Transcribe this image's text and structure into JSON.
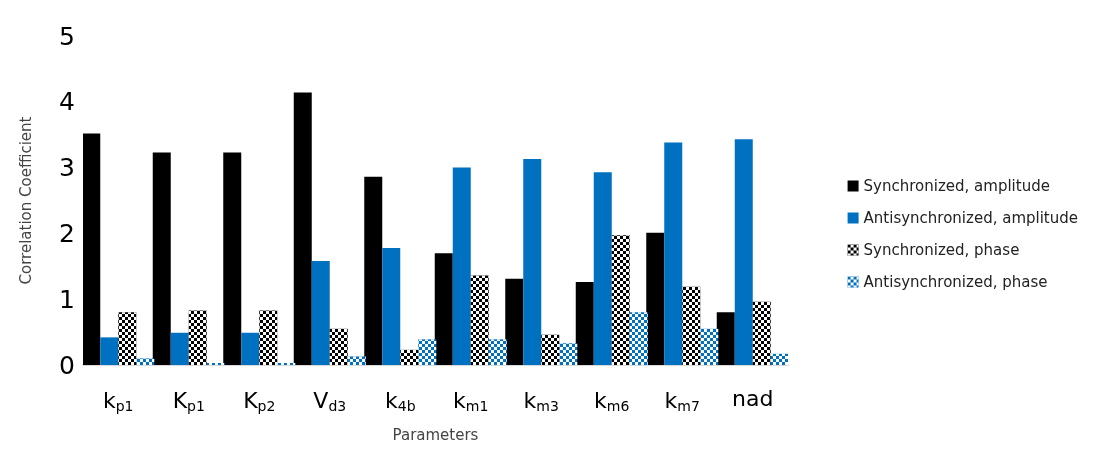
{
  "chart_data": {
    "type": "bar",
    "xlabel": "Parameters",
    "ylabel": "Correlation Coefficient",
    "categories": [
      "k$_{p1}$",
      "K$_{p1}$",
      "K$_{p2}$",
      "V$_{d3}$",
      "k$_{4b}$",
      "k$_{m1}$",
      "k$_{m3}$",
      "k$_{m6}$",
      "k$_{m7}$",
      "nad"
    ],
    "series": [
      {
        "name": "Synchronized, amplitude",
        "color": "#000000",
        "values": [
          3.52,
          3.23,
          3.23,
          4.14,
          2.86,
          1.7,
          1.31,
          1.26,
          2.01,
          0.8
        ]
      },
      {
        "name": "Antisynchronized, amplitude",
        "color": "#0070c0",
        "values": [
          0.42,
          0.49,
          0.49,
          1.58,
          1.78,
          3.0,
          3.13,
          2.93,
          3.38,
          3.43
        ]
      },
      {
        "name": "Synchronized, phase",
        "color": "#000000",
        "values": [
          0.8,
          0.83,
          0.83,
          0.55,
          0.23,
          1.36,
          0.46,
          1.97,
          1.19,
          0.96
        ]
      },
      {
        "name": "Antisynchronized, phase",
        "color": "#0070c0",
        "values": [
          0.1,
          0.03,
          0.03,
          0.13,
          0.39,
          0.39,
          0.33,
          0.8,
          0.55,
          0.17
        ]
      }
    ],
    "ylim": [
      0,
      5
    ],
    "yticks": [
      0,
      1,
      2,
      3,
      4,
      5
    ],
    "grid": false,
    "legend": "right"
  }
}
